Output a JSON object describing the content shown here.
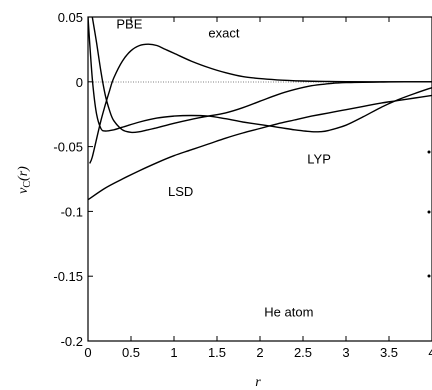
{
  "chart_data": {
    "type": "line",
    "xlabel": "r",
    "ylabel": {
      "main": "v",
      "sub": "C",
      "suffix": "(r)"
    },
    "xlim": [
      0,
      4
    ],
    "ylim": [
      -0.2,
      0.05
    ],
    "grid": false,
    "x_ticks": [
      {
        "value": 0,
        "label": "0"
      },
      {
        "value": 0.5,
        "label": "0.5"
      },
      {
        "value": 1,
        "label": "1"
      },
      {
        "value": 1.5,
        "label": "1.5"
      },
      {
        "value": 2,
        "label": "2"
      },
      {
        "value": 2.5,
        "label": "2.5"
      },
      {
        "value": 3,
        "label": "3"
      },
      {
        "value": 3.5,
        "label": "3.5"
      },
      {
        "value": 4,
        "label": "4"
      }
    ],
    "y_ticks": [
      {
        "value": 0.05,
        "label": "0.05"
      },
      {
        "value": 0,
        "label": "0"
      },
      {
        "value": -0.05,
        "label": "-0.05"
      },
      {
        "value": -0.1,
        "label": "-0.1"
      },
      {
        "value": -0.15,
        "label": "-0.15"
      },
      {
        "value": -0.2,
        "label": "-0.2"
      }
    ],
    "annotations": [
      {
        "text": "He atom",
        "x": 2.05,
        "y": -0.181
      }
    ],
    "series": [
      {
        "name": "exact",
        "label_at": [
          1.4,
          0.034
        ],
        "x": [
          0.02,
          0.05,
          0.1,
          0.15,
          0.2,
          0.25,
          0.3,
          0.4,
          0.5,
          0.6,
          0.7,
          0.8,
          0.9,
          1.0,
          1.2,
          1.4,
          1.6,
          1.8,
          2.0,
          2.2,
          2.5,
          2.8,
          3.0,
          3.5,
          4.0
        ],
        "y": [
          -0.063,
          -0.058,
          -0.044,
          -0.03,
          -0.018,
          -0.007,
          0.003,
          0.016,
          0.024,
          0.028,
          0.029,
          0.028,
          0.025,
          0.022,
          0.016,
          0.011,
          0.007,
          0.004,
          0.0025,
          0.0015,
          0.0006,
          0.0002,
          0.0001,
          0.0,
          0.0
        ]
      },
      {
        "name": "PBE",
        "label_at": [
          0.33,
          0.041
        ],
        "x": [
          0.05,
          0.1,
          0.15,
          0.2,
          0.25,
          0.3,
          0.4,
          0.5,
          0.6,
          0.7,
          0.8,
          1.0,
          1.2,
          1.4,
          1.6,
          1.8,
          2.0,
          2.2,
          2.4,
          2.6,
          2.8,
          3.0,
          3.5,
          4.0
        ],
        "y": [
          0.05,
          0.03,
          0.008,
          -0.01,
          -0.022,
          -0.03,
          -0.037,
          -0.039,
          -0.0385,
          -0.037,
          -0.0355,
          -0.032,
          -0.029,
          -0.0265,
          -0.024,
          -0.02,
          -0.015,
          -0.01,
          -0.006,
          -0.003,
          -0.0015,
          -0.0006,
          -0.0001,
          0.0
        ]
      },
      {
        "name": "LYP",
        "label_at": [
          2.55,
          -0.063
        ],
        "x": [
          0.0,
          0.03,
          0.06,
          0.1,
          0.15,
          0.2,
          0.3,
          0.4,
          0.6,
          0.8,
          1.0,
          1.2,
          1.4,
          1.6,
          1.8,
          2.0,
          2.2,
          2.4,
          2.6,
          2.7,
          2.8,
          3.0,
          3.2,
          3.4,
          3.6,
          3.8,
          4.0
        ],
        "y": [
          0.05,
          0.02,
          -0.005,
          -0.025,
          -0.036,
          -0.038,
          -0.037,
          -0.035,
          -0.031,
          -0.028,
          -0.0265,
          -0.026,
          -0.0265,
          -0.0285,
          -0.031,
          -0.033,
          -0.035,
          -0.037,
          -0.0385,
          -0.0385,
          -0.0375,
          -0.0335,
          -0.027,
          -0.02,
          -0.014,
          -0.009,
          -0.0045
        ]
      },
      {
        "name": "LSD",
        "label_at": [
          0.93,
          -0.088
        ],
        "x": [
          0.0,
          0.2,
          0.4,
          0.6,
          0.8,
          1.0,
          1.2,
          1.4,
          1.6,
          1.8,
          2.0,
          2.2,
          2.4,
          2.6,
          2.8,
          3.0,
          3.2,
          3.4,
          3.6,
          3.8,
          4.0
        ],
        "y": [
          -0.091,
          -0.082,
          -0.075,
          -0.0685,
          -0.0625,
          -0.057,
          -0.0525,
          -0.048,
          -0.0435,
          -0.0395,
          -0.036,
          -0.0325,
          -0.0295,
          -0.0265,
          -0.024,
          -0.0215,
          -0.019,
          -0.0165,
          -0.0145,
          -0.0125,
          -0.0105
        ]
      }
    ]
  }
}
